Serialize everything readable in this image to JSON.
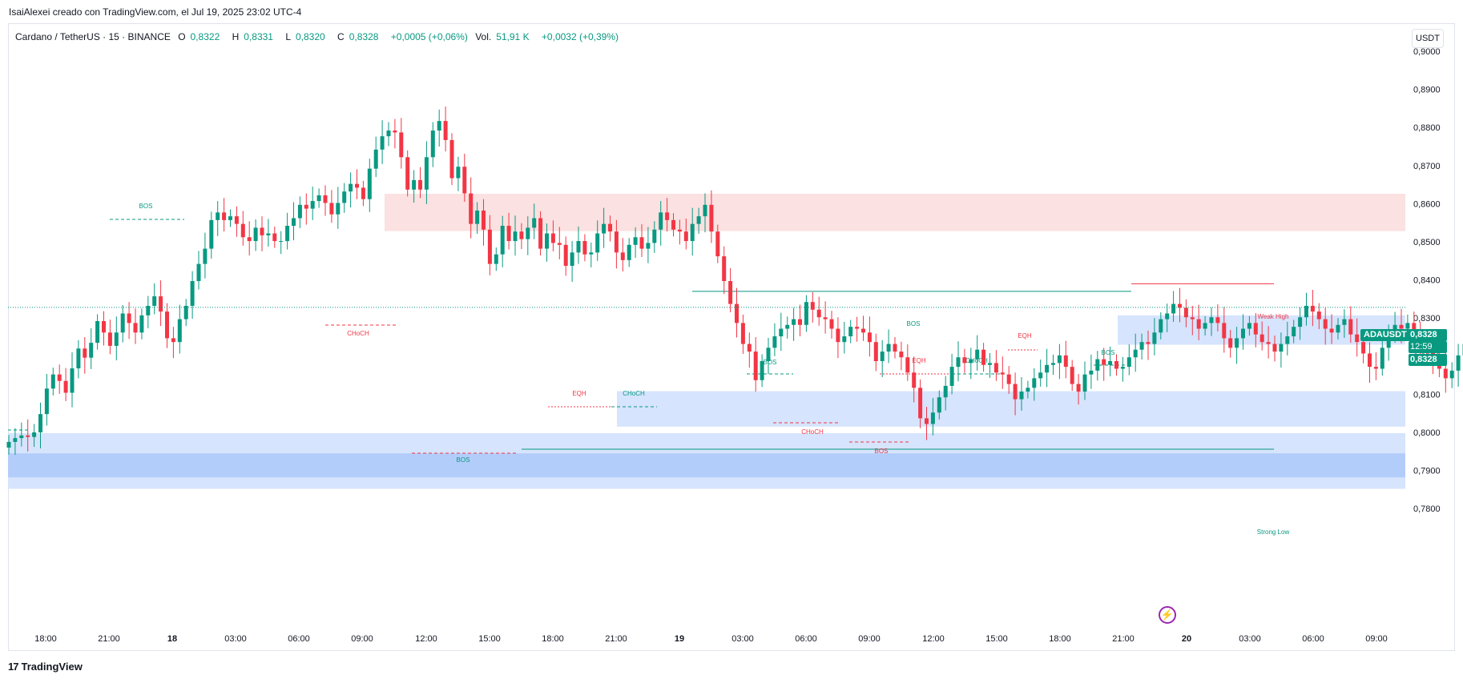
{
  "caption": "IsaiAlexei creado con TradingView.com, el Jul 19, 2025 23:02 UTC-4",
  "legend": {
    "symbol": "Cardano / TetherUS · 15 · BINANCE",
    "o_label": "O",
    "o_value": "0,8322",
    "h_label": "H",
    "h_value": "0,8331",
    "l_label": "L",
    "l_value": "0,8320",
    "c_label": "C",
    "c_value": "0,8328",
    "change": "+0,0005 (+0,06%)",
    "vol_label": "Vol.",
    "vol_value": "51,91 K",
    "vol_change": "+0,0032 (+0,39%)"
  },
  "currency": "USDT",
  "price_badges": {
    "symbol": "ADAUSDT",
    "last_price": "0,8328",
    "countdown": "12:59",
    "close_price": "0,8328"
  },
  "footer": {
    "logo_mark": "17",
    "logo_text": "TradingView"
  },
  "icons": {
    "lightning": "lightning-icon",
    "logo": "tradingview-logo-icon"
  },
  "colors": {
    "up": "#089981",
    "down": "#f23645",
    "supply": "#fbe1e1",
    "demand": "#d6e4fd",
    "demand_strong": "#b3cdfb",
    "bos": "#089981",
    "choch": "#f23645"
  },
  "chart_data": {
    "type": "candlestick",
    "y_axis": {
      "range": [
        0.7755,
        0.9055
      ],
      "ticks": [
        "0,9000",
        "0,8900",
        "0,8800",
        "0,8700",
        "0,8600",
        "0,8500",
        "0,8400",
        "0,8300",
        "0,8200",
        "0,8100",
        "0,8000",
        "0,7900",
        "0,7800"
      ],
      "tick_values": [
        0.9,
        0.89,
        0.88,
        0.87,
        0.86,
        0.85,
        0.84,
        0.83,
        0.82,
        0.81,
        0.8,
        0.79,
        0.78
      ]
    },
    "x_axis": {
      "ticks": [
        "18:00",
        "21:00",
        "18",
        "03:00",
        "06:00",
        "09:00",
        "12:00",
        "15:00",
        "18:00",
        "21:00",
        "19",
        "03:00",
        "06:00",
        "09:00",
        "12:00",
        "15:00",
        "18:00",
        "21:00",
        "20",
        "03:00",
        "06:00",
        "09:00"
      ],
      "bold": [
        "18",
        "19",
        "20"
      ]
    },
    "closes": [
      0.7975,
      0.7985,
      0.7992,
      0.7988,
      0.8,
      0.8048,
      0.8115,
      0.8152,
      0.8135,
      0.8104,
      0.8168,
      0.822,
      0.8196,
      0.8235,
      0.8292,
      0.8262,
      0.8227,
      0.8262,
      0.8312,
      0.8287,
      0.8262,
      0.8307,
      0.8332,
      0.8357,
      0.8317,
      0.8247,
      0.8237,
      0.8297,
      0.8332,
      0.8397,
      0.8442,
      0.8482,
      0.8557,
      0.8577,
      0.8557,
      0.8567,
      0.8547,
      0.8512,
      0.8502,
      0.8537,
      0.8517,
      0.8522,
      0.8502,
      0.8502,
      0.8542,
      0.8562,
      0.8597,
      0.8587,
      0.8607,
      0.8622,
      0.8602,
      0.8572,
      0.8602,
      0.8632,
      0.8652,
      0.8642,
      0.8612,
      0.8692,
      0.8742,
      0.8777,
      0.8792,
      0.8787,
      0.8722,
      0.8637,
      0.8662,
      0.8637,
      0.8722,
      0.8792,
      0.8817,
      0.8767,
      0.8667,
      0.8697,
      0.8627,
      0.8547,
      0.8582,
      0.8532,
      0.8442,
      0.8467,
      0.8542,
      0.8502,
      0.8527,
      0.8507,
      0.8537,
      0.8562,
      0.8482,
      0.8522,
      0.8497,
      0.8492,
      0.8437,
      0.8472,
      0.8502,
      0.8467,
      0.8472,
      0.8522,
      0.8547,
      0.8527,
      0.8472,
      0.8452,
      0.8492,
      0.8512,
      0.8482,
      0.8497,
      0.8532,
      0.8577,
      0.8557,
      0.8532,
      0.8527,
      0.8502,
      0.8547,
      0.8567,
      0.8597,
      0.8527,
      0.8462,
      0.8397,
      0.8337,
      0.8287,
      0.8232,
      0.8212,
      0.8137,
      0.8187,
      0.8222,
      0.8252,
      0.8272,
      0.8282,
      0.8297,
      0.8282,
      0.8342,
      0.8322,
      0.8302,
      0.8297,
      0.8272,
      0.8237,
      0.8252,
      0.8277,
      0.8272,
      0.8262,
      0.8237,
      0.8187,
      0.8212,
      0.8232,
      0.8212,
      0.8197,
      0.8157,
      0.8117,
      0.8037,
      0.8022,
      0.8052,
      0.8092,
      0.8122,
      0.8172,
      0.8197,
      0.8182,
      0.8192,
      0.8217,
      0.8177,
      0.8182,
      0.8157,
      0.8152,
      0.8127,
      0.8087,
      0.8107,
      0.8117,
      0.8142,
      0.8157,
      0.8177,
      0.8182,
      0.8202,
      0.8172,
      0.8127,
      0.8107,
      0.8152,
      0.8162,
      0.8192,
      0.8177,
      0.8187,
      0.8167,
      0.8172,
      0.8197,
      0.8217,
      0.8237,
      0.8232,
      0.8262,
      0.8297,
      0.8312,
      0.8337,
      0.8327,
      0.8302,
      0.8297,
      0.8272,
      0.8287,
      0.8302,
      0.8287,
      0.8247,
      0.8222,
      0.8247,
      0.8272,
      0.8287,
      0.8257,
      0.8237,
      0.8232,
      0.8212,
      0.8232,
      0.8252,
      0.8277,
      0.8302,
      0.8332,
      0.8317,
      0.8297,
      0.8272,
      0.8262,
      0.8282,
      0.8297,
      0.8257,
      0.8237,
      0.8207,
      0.8172,
      0.8167,
      0.8222,
      0.8257,
      0.8282,
      0.8272,
      0.8287,
      0.8252,
      0.8232,
      0.8212,
      0.8187,
      0.8167,
      0.8142,
      0.8162,
      0.8202,
      0.8232,
      0.8267,
      0.8262,
      0.8247,
      0.8232,
      0.8217,
      0.8212,
      0.8232,
      0.8257,
      0.8277,
      0.8292,
      0.8327,
      0.8342,
      0.8317,
      0.8287,
      0.8307,
      0.8297,
      0.8262,
      0.8222,
      0.8187,
      0.8207,
      0.8232,
      0.8242,
      0.8252,
      0.8262,
      0.8257,
      0.8267,
      0.8272,
      0.8267,
      0.8282,
      0.8297,
      0.8242,
      0.8232,
      0.8247,
      0.8297,
      0.8332,
      0.8362,
      0.8352,
      0.8307,
      0.8302,
      0.8312,
      0.8322,
      0.8328
    ],
    "structure_labels": [
      "BOS",
      "CHoCH",
      "BOS",
      "EQH",
      "CHoCH",
      "BOS",
      "BOS",
      "CHoCH",
      "EQH",
      "CHoCH",
      "BOS",
      "EQH",
      "BOS",
      "Weak High",
      "Strong Low"
    ],
    "zones": [
      {
        "type": "supply",
        "low": 0.8528,
        "high": 0.8626
      },
      {
        "type": "demand",
        "low": 0.823,
        "high": 0.8307
      },
      {
        "type": "demand",
        "low": 0.8015,
        "high": 0.8108
      },
      {
        "type": "demand",
        "low": 0.7852,
        "high": 0.7998
      },
      {
        "type": "demand_strong",
        "low": 0.7882,
        "high": 0.7945
      }
    ],
    "key_levels": {
      "weak_high": 0.839,
      "strong_low": 0.7956,
      "bos_high": 0.837,
      "current": 0.8328
    }
  }
}
